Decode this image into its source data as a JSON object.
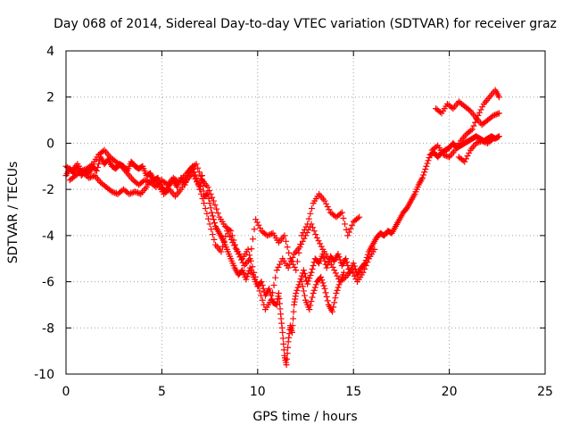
{
  "chart_data": {
    "type": "scatter",
    "title": "Day 068 of 2014, Sidereal Day-to-day VTEC variation (SDTVAR) for receiver graz",
    "xlabel": "GPS time / hours",
    "ylabel": "SDTVAR / TECUs",
    "xlim": [
      0,
      25
    ],
    "ylim": [
      -10,
      4
    ],
    "x_ticks": [
      "0",
      "5",
      "10",
      "15",
      "20",
      "25"
    ],
    "y_ticks": [
      "-10",
      "-8",
      "-6",
      "-4",
      "-2",
      "0",
      "2",
      "4"
    ],
    "grid": true,
    "marker": "+",
    "colors": {
      "series": "#ff0000",
      "grid": "#a0a0a0",
      "axes": "#000000"
    },
    "series": [
      {
        "points": [
          [
            0.0,
            -1.4
          ],
          [
            0.2,
            -1.1
          ],
          [
            0.4,
            -1.3
          ],
          [
            0.6,
            -1.0
          ],
          [
            0.8,
            -1.4
          ],
          [
            1.0,
            -1.2
          ],
          [
            1.2,
            -1.3
          ],
          [
            1.4,
            -1.0
          ],
          [
            1.6,
            -1.2
          ],
          [
            1.8,
            -0.6
          ],
          [
            2.0,
            -0.9
          ],
          [
            2.2,
            -0.7
          ],
          [
            2.4,
            -1.0
          ],
          [
            2.6,
            -1.1
          ],
          [
            2.8,
            -0.9
          ],
          [
            3.0,
            -1.0
          ],
          [
            3.2,
            -1.2
          ],
          [
            3.4,
            -0.8
          ],
          [
            3.6,
            -1.0
          ],
          [
            3.8,
            -1.1
          ],
          [
            4.0,
            -1.0
          ],
          [
            4.2,
            -1.4
          ],
          [
            4.4,
            -1.3
          ],
          [
            4.6,
            -1.6
          ],
          [
            4.8,
            -1.5
          ],
          [
            5.0,
            -1.9
          ],
          [
            5.2,
            -2.1
          ],
          [
            5.4,
            -1.8
          ],
          [
            5.6,
            -1.6
          ],
          [
            5.8,
            -1.9
          ],
          [
            6.0,
            -1.5
          ],
          [
            6.2,
            -1.8
          ],
          [
            6.4,
            -1.3
          ],
          [
            6.6,
            -1.0
          ],
          [
            6.8,
            -1.5
          ],
          [
            7.0,
            -2.0
          ],
          [
            7.1,
            -1.4
          ],
          [
            7.2,
            -2.3
          ],
          [
            7.4,
            -2.2
          ],
          [
            7.6,
            -3.0
          ],
          [
            7.8,
            -3.6
          ],
          [
            8.0,
            -3.9
          ],
          [
            8.2,
            -4.2
          ],
          [
            8.4,
            -4.6
          ],
          [
            8.6,
            -5.0
          ],
          [
            8.8,
            -5.4
          ],
          [
            9.0,
            -5.7
          ],
          [
            9.2,
            -5.5
          ],
          [
            9.4,
            -5.9
          ],
          [
            9.6,
            -5.4
          ],
          [
            9.8,
            -5.8
          ],
          [
            10.0,
            -6.2
          ],
          [
            10.2,
            -6.0
          ],
          [
            10.4,
            -6.6
          ],
          [
            10.6,
            -6.3
          ],
          [
            10.8,
            -6.9
          ],
          [
            11.0,
            -7.0
          ],
          [
            11.1,
            -6.5
          ],
          [
            11.2,
            -7.4
          ],
          [
            11.3,
            -8.2
          ],
          [
            11.4,
            -9.2
          ],
          [
            11.5,
            -9.6
          ],
          [
            11.6,
            -8.6
          ],
          [
            11.7,
            -7.9
          ],
          [
            11.8,
            -8.2
          ],
          [
            11.9,
            -7.0
          ],
          [
            12.0,
            -6.5
          ],
          [
            12.2,
            -6.0
          ],
          [
            12.4,
            -5.5
          ],
          [
            12.6,
            -6.1
          ],
          [
            12.8,
            -5.6
          ],
          [
            13.0,
            -5.0
          ],
          [
            13.2,
            -5.2
          ],
          [
            13.4,
            -4.8
          ],
          [
            13.6,
            -5.4
          ],
          [
            13.8,
            -4.9
          ],
          [
            14.0,
            -5.1
          ],
          [
            14.2,
            -4.8
          ],
          [
            14.4,
            -5.3
          ],
          [
            14.6,
            -5.0
          ],
          [
            14.8,
            -5.6
          ],
          [
            15.0,
            -5.2
          ],
          [
            15.2,
            -5.7
          ],
          [
            15.4,
            -5.4
          ],
          [
            15.6,
            -5.2
          ],
          [
            15.8,
            -4.7
          ],
          [
            16.0,
            -4.4
          ],
          [
            16.2,
            -4.1
          ],
          [
            16.4,
            -3.9
          ],
          [
            16.6,
            -4.0
          ],
          [
            16.8,
            -3.8
          ],
          [
            17.0,
            -3.9
          ],
          [
            17.2,
            -3.6
          ],
          [
            17.4,
            -3.3
          ],
          [
            17.6,
            -3.0
          ],
          [
            17.8,
            -2.8
          ],
          [
            18.0,
            -2.5
          ],
          [
            18.2,
            -2.2
          ],
          [
            18.4,
            -1.8
          ],
          [
            18.6,
            -1.5
          ],
          [
            18.8,
            -1.0
          ],
          [
            19.0,
            -0.5
          ],
          [
            19.2,
            -0.4
          ],
          [
            19.4,
            -0.6
          ],
          [
            19.6,
            -0.4
          ],
          [
            19.8,
            -0.3
          ],
          [
            20.0,
            -0.2
          ],
          [
            20.2,
            0.0
          ],
          [
            20.4,
            -0.2
          ],
          [
            20.6,
            -0.1
          ],
          [
            20.8,
            0.0
          ],
          [
            21.0,
            0.1
          ],
          [
            21.2,
            0.2
          ],
          [
            21.4,
            0.3
          ],
          [
            21.6,
            0.2
          ],
          [
            21.8,
            0.1
          ],
          [
            22.0,
            0.2
          ],
          [
            22.2,
            0.3
          ],
          [
            22.4,
            0.2
          ],
          [
            22.6,
            0.3
          ]
        ]
      },
      {
        "points": [
          [
            0.0,
            -1.0
          ],
          [
            0.3,
            -1.2
          ],
          [
            0.6,
            -0.9
          ],
          [
            0.9,
            -1.3
          ],
          [
            1.2,
            -1.5
          ],
          [
            1.5,
            -1.4
          ],
          [
            1.8,
            -1.7
          ],
          [
            2.1,
            -1.9
          ],
          [
            2.4,
            -2.1
          ],
          [
            2.7,
            -2.2
          ],
          [
            3.0,
            -2.0
          ],
          [
            3.3,
            -2.2
          ],
          [
            3.6,
            -2.1
          ],
          [
            3.9,
            -2.2
          ],
          [
            4.2,
            -1.9
          ],
          [
            4.5,
            -1.5
          ],
          [
            4.8,
            -1.8
          ],
          [
            5.1,
            -2.2
          ],
          [
            5.4,
            -2.0
          ],
          [
            5.7,
            -2.3
          ],
          [
            6.0,
            -2.0
          ],
          [
            6.3,
            -1.6
          ],
          [
            6.6,
            -1.3
          ],
          [
            6.9,
            -1.8
          ],
          [
            7.2,
            -2.6
          ],
          [
            7.5,
            -3.5
          ],
          [
            7.8,
            -4.4
          ],
          [
            8.1,
            -4.7
          ],
          [
            8.4,
            -3.8
          ],
          [
            8.7,
            -4.3
          ],
          [
            9.0,
            -4.8
          ],
          [
            9.3,
            -5.3
          ],
          [
            9.6,
            -5.0
          ],
          [
            9.9,
            -3.3
          ],
          [
            10.2,
            -3.8
          ],
          [
            10.5,
            -4.0
          ],
          [
            10.8,
            -3.9
          ],
          [
            11.1,
            -4.3
          ],
          [
            11.4,
            -4.0
          ],
          [
            11.7,
            -5.0
          ],
          [
            12.0,
            -5.5
          ],
          [
            12.3,
            -4.0
          ],
          [
            12.6,
            -3.5
          ],
          [
            12.9,
            -2.6
          ],
          [
            13.2,
            -2.2
          ],
          [
            13.5,
            -2.5
          ],
          [
            13.8,
            -3.0
          ],
          [
            14.1,
            -3.2
          ],
          [
            14.4,
            -3.0
          ],
          [
            14.7,
            -4.0
          ],
          [
            15.0,
            -3.4
          ],
          [
            15.3,
            -3.2
          ],
          [
            19.3,
            1.5
          ],
          [
            19.6,
            1.3
          ],
          [
            19.9,
            1.7
          ],
          [
            20.2,
            1.5
          ],
          [
            20.5,
            1.8
          ],
          [
            20.8,
            1.6
          ],
          [
            21.1,
            1.4
          ],
          [
            21.4,
            1.1
          ],
          [
            21.7,
            0.8
          ],
          [
            22.0,
            1.0
          ],
          [
            22.3,
            1.2
          ],
          [
            22.6,
            1.3
          ]
        ]
      },
      {
        "points": [
          [
            0.2,
            -1.6
          ],
          [
            0.5,
            -1.4
          ],
          [
            0.8,
            -1.2
          ],
          [
            1.1,
            -1.1
          ],
          [
            1.4,
            -0.9
          ],
          [
            1.7,
            -0.5
          ],
          [
            2.0,
            -0.3
          ],
          [
            2.3,
            -0.6
          ],
          [
            2.6,
            -0.8
          ],
          [
            2.9,
            -1.0
          ],
          [
            3.2,
            -1.3
          ],
          [
            3.5,
            -1.6
          ],
          [
            3.8,
            -1.8
          ],
          [
            4.1,
            -1.6
          ],
          [
            4.4,
            -1.7
          ],
          [
            4.7,
            -1.9
          ],
          [
            5.0,
            -1.6
          ],
          [
            5.3,
            -1.8
          ],
          [
            5.6,
            -1.5
          ],
          [
            5.9,
            -1.7
          ],
          [
            6.2,
            -1.4
          ],
          [
            6.5,
            -1.1
          ],
          [
            6.8,
            -0.9
          ],
          [
            7.1,
            -1.6
          ],
          [
            7.4,
            -1.9
          ],
          [
            7.7,
            -2.5
          ],
          [
            8.0,
            -3.2
          ],
          [
            8.3,
            -3.6
          ],
          [
            8.6,
            -3.8
          ],
          [
            8.9,
            -4.6
          ],
          [
            9.2,
            -5.0
          ],
          [
            9.5,
            -4.6
          ],
          [
            9.8,
            -5.6
          ],
          [
            10.1,
            -6.4
          ],
          [
            10.4,
            -7.2
          ],
          [
            10.7,
            -6.8
          ],
          [
            11.0,
            -5.5
          ],
          [
            11.3,
            -5.0
          ],
          [
            11.6,
            -5.4
          ],
          [
            11.9,
            -4.8
          ],
          [
            12.2,
            -4.5
          ],
          [
            12.5,
            -4.0
          ],
          [
            12.8,
            -3.5
          ],
          [
            13.1,
            -4.1
          ],
          [
            13.4,
            -4.6
          ],
          [
            13.7,
            -5.0
          ],
          [
            14.0,
            -5.5
          ],
          [
            14.3,
            -6.0
          ],
          [
            14.6,
            -5.8
          ],
          [
            14.9,
            -5.5
          ],
          [
            15.2,
            -6.0
          ],
          [
            15.5,
            -5.6
          ],
          [
            15.8,
            -5.0
          ],
          [
            16.1,
            -4.6
          ],
          [
            19.1,
            -0.3
          ],
          [
            19.4,
            -0.1
          ],
          [
            19.7,
            -0.5
          ],
          [
            20.0,
            -0.6
          ],
          [
            20.3,
            -0.3
          ],
          [
            20.6,
            0.1
          ],
          [
            20.9,
            0.4
          ],
          [
            21.2,
            0.6
          ],
          [
            21.5,
            1.2
          ],
          [
            21.8,
            1.7
          ],
          [
            22.1,
            2.0
          ],
          [
            22.4,
            2.3
          ],
          [
            22.6,
            2.0
          ]
        ]
      },
      {
        "points": [
          [
            12.3,
            -6.0
          ],
          [
            12.5,
            -6.8
          ],
          [
            12.7,
            -7.2
          ],
          [
            12.9,
            -6.5
          ],
          [
            13.1,
            -6.0
          ],
          [
            13.3,
            -5.8
          ],
          [
            13.5,
            -6.3
          ],
          [
            13.7,
            -7.0
          ],
          [
            13.9,
            -7.3
          ],
          [
            14.1,
            -6.5
          ],
          [
            14.3,
            -6.0
          ],
          [
            14.5,
            -5.6
          ],
          [
            20.5,
            -0.6
          ],
          [
            20.8,
            -0.8
          ],
          [
            21.1,
            -0.3
          ],
          [
            21.4,
            0.0
          ],
          [
            21.7,
            0.1
          ],
          [
            22.0,
            0.0
          ],
          [
            22.3,
            0.2
          ]
        ]
      }
    ]
  }
}
